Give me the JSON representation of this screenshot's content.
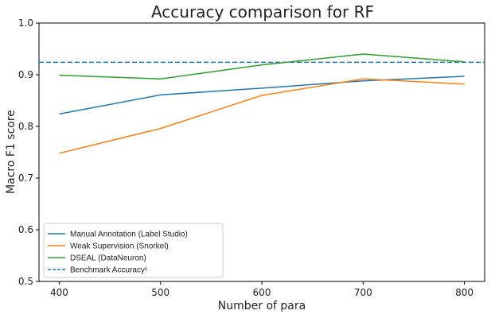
{
  "chart_data": {
    "type": "line",
    "title": "Accuracy comparison for RF",
    "xlabel": "Number of para",
    "ylabel": "Macro F1 score",
    "x": [
      400,
      500,
      600,
      700,
      800
    ],
    "xlim": [
      380,
      820
    ],
    "ylim": [
      0.5,
      1.0
    ],
    "xticks": [
      "400",
      "500",
      "600",
      "700",
      "800"
    ],
    "yticks": [
      "0.5",
      "0.6",
      "0.7",
      "0.8",
      "0.9",
      "1.0"
    ],
    "grid": false,
    "legend_position": "bottom-left",
    "series": [
      {
        "name": "Manual Annotation (Label Studio)",
        "color": "#1f77b4",
        "values": [
          0.824,
          0.861,
          0.874,
          0.888,
          0.897
        ]
      },
      {
        "name": "Weak Supervision (Snorkel)",
        "color": "#ff7f0e",
        "values": [
          0.748,
          0.796,
          0.86,
          0.892,
          0.882
        ]
      },
      {
        "name": "DSEAL (DataNeuron)",
        "color": "#2ca02c",
        "values": [
          0.899,
          0.892,
          0.919,
          0.94,
          0.925
        ]
      }
    ],
    "benchmark": {
      "name": "Benchmark Accuracy¹",
      "color": "#1f77b4",
      "value": 0.924
    }
  }
}
